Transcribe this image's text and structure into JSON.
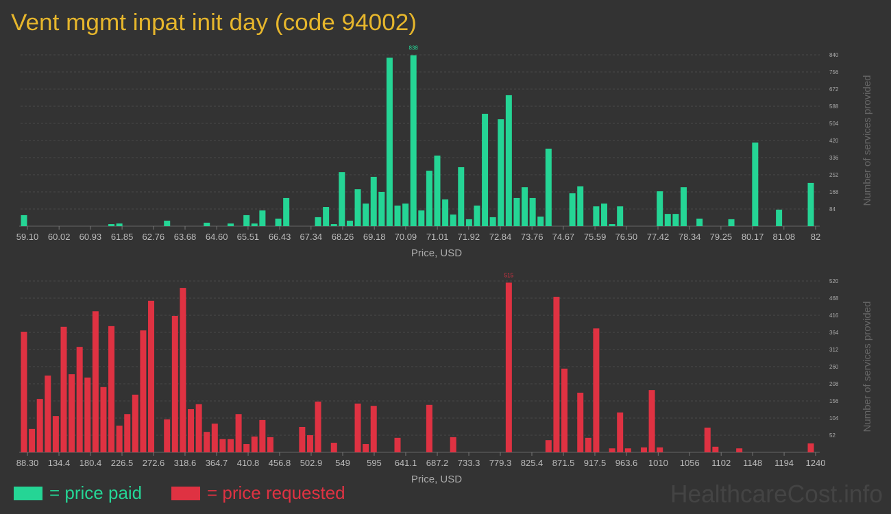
{
  "watermark": "HealthcareCost.info",
  "chart_data": [
    {
      "type": "bar",
      "title": "Vent mgmt inpat init day (code 94002)",
      "name": "= price paid",
      "color": "#25d595",
      "xlabel": "Price, USD",
      "ylabel": "Number of services provided",
      "values": [
        54,
        0,
        0,
        0,
        0,
        0,
        0,
        0,
        0,
        0,
        0,
        10,
        13,
        0,
        0,
        0,
        0,
        0,
        27,
        0,
        0,
        0,
        0,
        17,
        0,
        0,
        13,
        0,
        54,
        13,
        77,
        0,
        37,
        138,
        0,
        0,
        0,
        44,
        94,
        10,
        265,
        27,
        181,
        111,
        242,
        168,
        826,
        101,
        111,
        838,
        77,
        272,
        346,
        131,
        57,
        289,
        34,
        101,
        551,
        44,
        524,
        642,
        138,
        191,
        138,
        47,
        380,
        0,
        0,
        161,
        195,
        0,
        97,
        111,
        10,
        97,
        0,
        0,
        0,
        0,
        171,
        60,
        60,
        191,
        0,
        37,
        0,
        0,
        0,
        34,
        0,
        0,
        410,
        0,
        0,
        81,
        0,
        0,
        0,
        212
      ],
      "xlim": [
        59.1,
        82
      ],
      "xticks": [
        {
          "value": 59.1,
          "label": "59.10"
        },
        60.02,
        60.93,
        61.85,
        62.76,
        63.68,
        {
          "value": 64.6,
          "label": "64.60"
        },
        65.51,
        66.43,
        67.34,
        68.26,
        69.18,
        70.09,
        71.01,
        71.92,
        72.84,
        73.76,
        74.67,
        75.59,
        {
          "value": 76.5,
          "label": "76.50"
        },
        77.42,
        78.34,
        79.25,
        80.17,
        81.08,
        82
      ],
      "ylim": [
        0,
        840
      ],
      "yticks": [
        84,
        168,
        252,
        336,
        420,
        504,
        588,
        672,
        756,
        840
      ],
      "grid": true
    },
    {
      "type": "bar",
      "name": "= price requested",
      "color": "#df3242",
      "xlabel": "Price, USD",
      "ylabel": "Number of services provided",
      "values": [
        366,
        71,
        162,
        233,
        110,
        381,
        237,
        320,
        227,
        428,
        198,
        383,
        81,
        116,
        175,
        370,
        460,
        0,
        100,
        414,
        499,
        131,
        146,
        62,
        87,
        40,
        40,
        116,
        25,
        48,
        98,
        46,
        0,
        0,
        0,
        77,
        52,
        154,
        0,
        29,
        0,
        0,
        148,
        25,
        141,
        0,
        0,
        44,
        0,
        0,
        0,
        144,
        0,
        0,
        46,
        0,
        0,
        0,
        0,
        0,
        0,
        515,
        0,
        0,
        0,
        0,
        37,
        472,
        254,
        0,
        181,
        44,
        376,
        0,
        12,
        121,
        12,
        0,
        15,
        189,
        15,
        0,
        0,
        0,
        0,
        0,
        75,
        17,
        0,
        0,
        12,
        0,
        0,
        0,
        0,
        0,
        0,
        0,
        0,
        27
      ],
      "xlim": [
        88.3,
        1240
      ],
      "xticks": [
        {
          "value": 88.3,
          "label": "88.30"
        },
        134.4,
        180.4,
        226.5,
        272.6,
        318.6,
        364.7,
        410.8,
        456.8,
        502.9,
        549,
        595,
        641.1,
        687.2,
        733.3,
        779.3,
        825.4,
        871.5,
        917.5,
        963.6,
        1010,
        1056,
        1102,
        1148,
        1194,
        1240
      ],
      "ylim": [
        0,
        520
      ],
      "yticks": [
        52,
        104,
        156,
        208,
        260,
        312,
        364,
        416,
        468,
        520
      ],
      "grid": true
    }
  ]
}
